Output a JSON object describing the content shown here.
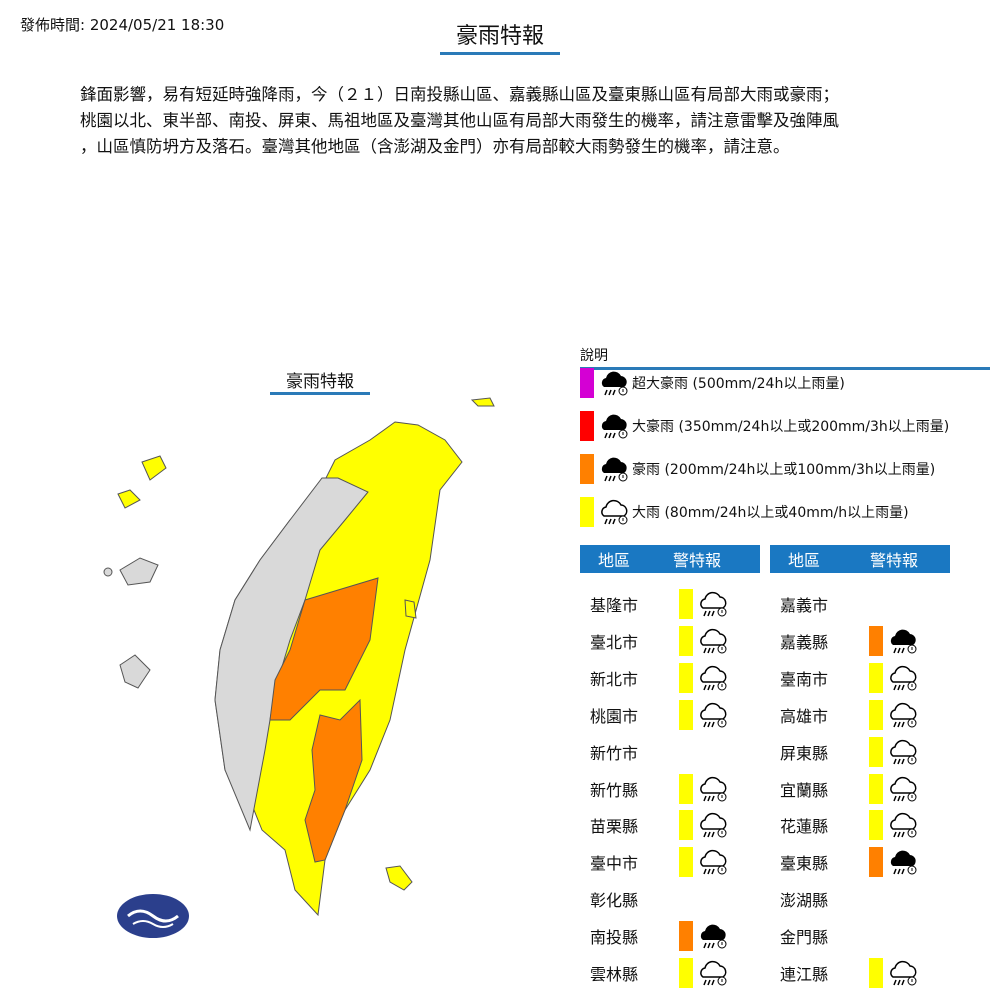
{
  "header": {
    "publish_time": "發佈時間: 2024/05/21 18:30",
    "title": "豪雨特報"
  },
  "description": [
    "鋒面影響，易有短延時強降雨，今（２１）日南投縣山區、嘉義縣山區及臺東縣山區有局部大雨或豪雨；",
    "桃園以北、東半部、南投、屏東、馬祖地區及臺灣其他山區有局部大雨發生的機率，請注意雷擊及強陣風",
    "，山區慎防坍方及落石。臺灣其他地區（含澎湖及金門）亦有局部較大雨勢發生的機率，請注意。"
  ],
  "map": {
    "title": "豪雨特報"
  },
  "colors": {
    "extreme_torrential": "#d400d4",
    "super_torrential": "#ff0000",
    "torrential": "#ff8000",
    "heavy": "#ffff00",
    "none_region": "#d9d9d9",
    "accent": "#1a78c2"
  },
  "legend": {
    "title": "說明",
    "items": [
      {
        "level": "extreme_torrential",
        "icon": "rain-cloud-filled-icon",
        "label": "超大豪雨 (500mm/24h以上雨量)"
      },
      {
        "level": "super_torrential",
        "icon": "rain-cloud-filled-icon",
        "label": "大豪雨 (350mm/24h以上或200mm/3h以上雨量)"
      },
      {
        "level": "torrential",
        "icon": "rain-cloud-filled-icon",
        "label": "豪雨 (200mm/24h以上或100mm/3h以上雨量)"
      },
      {
        "level": "heavy",
        "icon": "rain-cloud-outline-icon",
        "label": "大雨 (80mm/24h以上或40mm/h以上雨量)"
      }
    ]
  },
  "table": {
    "col_region": "地區",
    "col_warning": "警特報",
    "left": [
      {
        "name": "基隆市",
        "level": "heavy"
      },
      {
        "name": "臺北市",
        "level": "heavy"
      },
      {
        "name": "新北市",
        "level": "heavy"
      },
      {
        "name": "桃園市",
        "level": "heavy"
      },
      {
        "name": "新竹市",
        "level": ""
      },
      {
        "name": "新竹縣",
        "level": "heavy"
      },
      {
        "name": "苗栗縣",
        "level": "heavy"
      },
      {
        "name": "臺中市",
        "level": "heavy"
      },
      {
        "name": "彰化縣",
        "level": ""
      },
      {
        "name": "南投縣",
        "level": "torrential"
      },
      {
        "name": "雲林縣",
        "level": "heavy"
      }
    ],
    "right": [
      {
        "name": "嘉義市",
        "level": ""
      },
      {
        "name": "嘉義縣",
        "level": "torrential"
      },
      {
        "name": "臺南市",
        "level": "heavy"
      },
      {
        "name": "高雄市",
        "level": "heavy"
      },
      {
        "name": "屏東縣",
        "level": "heavy"
      },
      {
        "name": "宜蘭縣",
        "level": "heavy"
      },
      {
        "name": "花蓮縣",
        "level": "heavy"
      },
      {
        "name": "臺東縣",
        "level": "torrential"
      },
      {
        "name": "澎湖縣",
        "level": ""
      },
      {
        "name": "金門縣",
        "level": ""
      },
      {
        "name": "連江縣",
        "level": "heavy"
      }
    ]
  }
}
